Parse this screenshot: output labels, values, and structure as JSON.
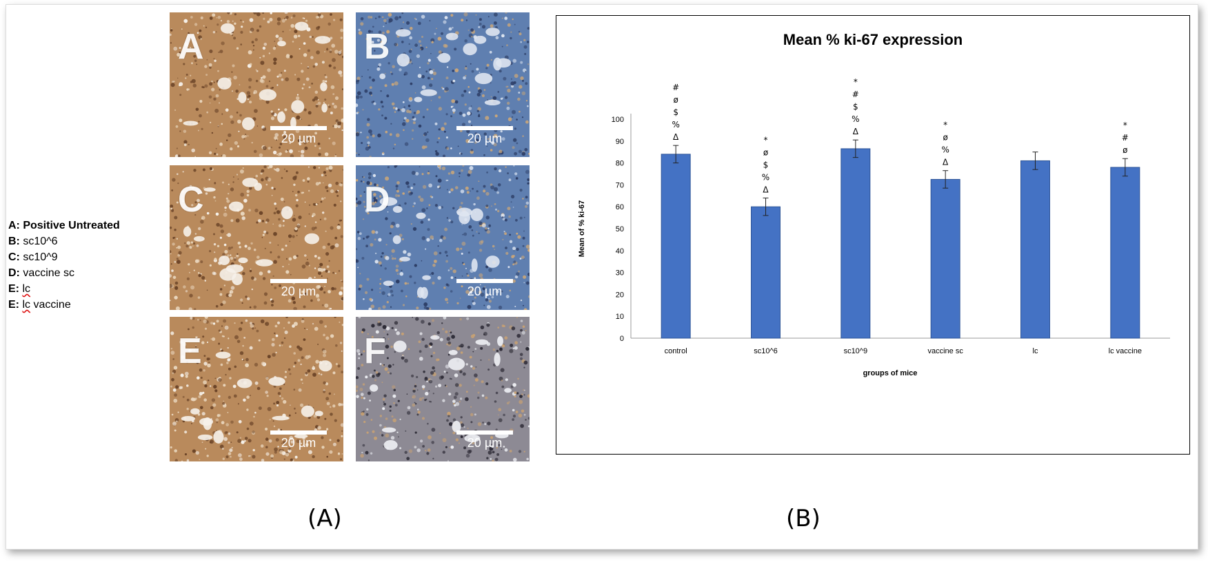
{
  "legend": [
    {
      "key": "A:",
      "text": "Positive Untreated"
    },
    {
      "key": "B:",
      "text": "sc10^6"
    },
    {
      "key": "C:",
      "text": "sc10^9"
    },
    {
      "key": "D:",
      "text": "vaccine sc"
    },
    {
      "key": "E:",
      "text": "lc"
    },
    {
      "key": "E:",
      "text": "lc vaccine"
    }
  ],
  "panels": [
    {
      "letter": "A",
      "scale": "20 µm",
      "tone": "brown"
    },
    {
      "letter": "B",
      "scale": "20 µm",
      "tone": "blue"
    },
    {
      "letter": "C",
      "scale": "20 µm",
      "tone": "brown"
    },
    {
      "letter": "D",
      "scale": "20 µm",
      "tone": "blue"
    },
    {
      "letter": "E",
      "scale": "20 µm",
      "tone": "brown"
    },
    {
      "letter": "F",
      "scale": "20 µm",
      "tone": "mixed"
    }
  ],
  "captions": {
    "left": "(A)",
    "right": "(B)"
  },
  "chart_data": {
    "type": "bar",
    "title": "Mean % ki-67 expression",
    "xlabel": "groups of mice",
    "ylabel": "Mean of % ki-67",
    "categories": [
      "control",
      "sc10^6",
      "sc10^9",
      "vaccine sc",
      "lc",
      "lc vaccine"
    ],
    "values": [
      84,
      60,
      86.5,
      72.5,
      81,
      78
    ],
    "errors": [
      4,
      4,
      4,
      4,
      4,
      4
    ],
    "significance": [
      [
        "#",
        "ø",
        "$",
        "%",
        "Δ"
      ],
      [
        "*",
        "ø",
        "$",
        "%",
        "Δ"
      ],
      [
        "*",
        "#",
        "$",
        "%",
        "Δ"
      ],
      [
        "*",
        "ø",
        "%",
        "Δ"
      ],
      [],
      [
        "*",
        "#",
        "ø"
      ]
    ],
    "ylim": [
      0,
      100
    ],
    "yticks": [
      0,
      10,
      20,
      30,
      40,
      50,
      60,
      70,
      80,
      90,
      100
    ],
    "bar_color": "#4472c4",
    "grid": false
  }
}
